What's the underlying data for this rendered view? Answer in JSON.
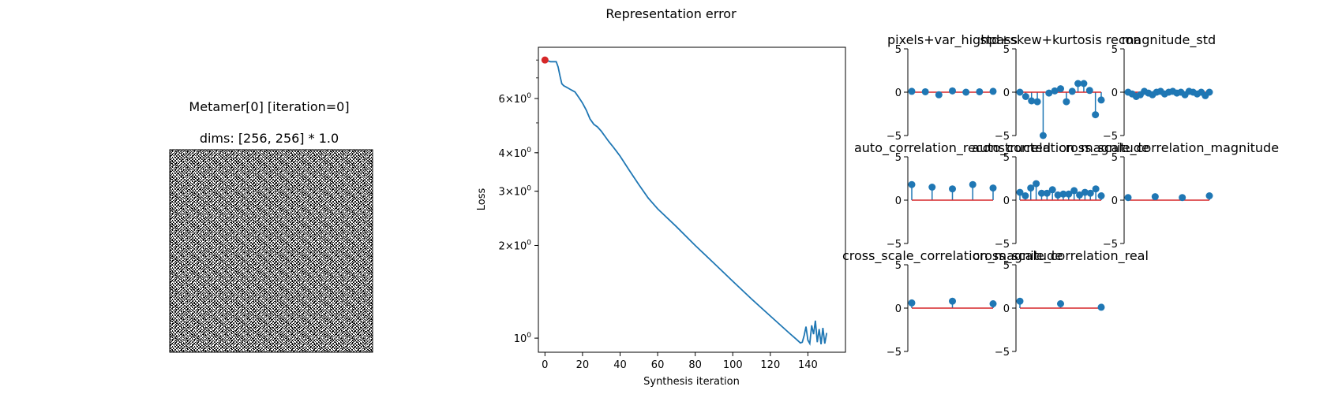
{
  "figure": {
    "image_title": "Metamer[0] [iteration=0]",
    "image_subtitle": "dims: [256, 256] * 1.0",
    "error_title": "Representation error"
  },
  "chart_data": [
    {
      "type": "line",
      "scale": "log-y",
      "xlabel": "Synthesis iteration",
      "ylabel": "Loss",
      "xlim": [
        -3.5,
        160
      ],
      "ylim": [
        0.9,
        8.8
      ],
      "x_ticks": [
        0,
        20,
        40,
        60,
        80,
        100,
        120,
        140
      ],
      "x_tick_labels": [
        "0",
        "20",
        "40",
        "60",
        "80",
        "100",
        "120",
        "140"
      ],
      "y_ticks": [
        1,
        2,
        3,
        4,
        6
      ],
      "y_tick_labels": [
        "10^0",
        "2×10^0",
        "3×10^0",
        "4×10^0",
        "6×10^0"
      ],
      "series": [
        {
          "color": "#1f77b4",
          "x": [
            0,
            3,
            6,
            7,
            8,
            9,
            10,
            11,
            12,
            14,
            16,
            18,
            20,
            22,
            24,
            26,
            28,
            30,
            32,
            34,
            36,
            38,
            40,
            45,
            50,
            55,
            60,
            70,
            80,
            90,
            100,
            110,
            120,
            130,
            134,
            136,
            137,
            138,
            139,
            140,
            141,
            142,
            143,
            144,
            145,
            146,
            147,
            148,
            149,
            150
          ],
          "y": [
            8.0,
            7.9,
            7.9,
            7.6,
            7.1,
            6.7,
            6.6,
            6.55,
            6.5,
            6.4,
            6.3,
            6.05,
            5.8,
            5.5,
            5.15,
            4.95,
            4.85,
            4.7,
            4.52,
            4.35,
            4.2,
            4.05,
            3.9,
            3.5,
            3.15,
            2.85,
            2.63,
            2.3,
            2.0,
            1.75,
            1.53,
            1.34,
            1.18,
            1.04,
            0.99,
            0.965,
            0.97,
            1.02,
            1.09,
            0.985,
            0.96,
            1.1,
            1.03,
            1.14,
            0.97,
            1.07,
            0.955,
            1.08,
            0.96,
            1.04
          ]
        }
      ],
      "marker": {
        "x": 0,
        "y": 8.0,
        "color": "#d62728"
      }
    },
    {
      "type": "stem",
      "title": "pixels+var_highpass",
      "ylim": [
        -5,
        5
      ],
      "y_ticks": [
        5,
        0,
        -5
      ],
      "values": [
        0.1,
        0.05,
        -0.3,
        0.15,
        0.0,
        0.05,
        0.1
      ]
    },
    {
      "type": "stem",
      "title": "std+skew+kurtosis recon",
      "ylim": [
        -5,
        5
      ],
      "values": [
        0.0,
        -0.5,
        -1.0,
        -1.1,
        -5.0,
        -0.1,
        0.15,
        0.4,
        -1.1,
        0.1,
        1.0,
        1.0,
        0.2,
        -2.6,
        -0.9
      ]
    },
    {
      "type": "stem",
      "title": "magnitude_std",
      "ylim": [
        -5,
        5
      ],
      "values": [
        0.0,
        -0.2,
        -0.5,
        -0.3,
        0.1,
        -0.1,
        -0.3,
        0.0,
        0.1,
        -0.2,
        0.0,
        0.1,
        -0.1,
        0.0,
        -0.3,
        0.1,
        0.0,
        -0.2,
        0.0,
        -0.4,
        0.0
      ]
    },
    {
      "type": "stem",
      "title": "auto_correlation_reconstructed",
      "ylim": [
        -5,
        5
      ],
      "values": [
        1.8,
        1.5,
        1.3,
        1.8,
        1.4
      ]
    },
    {
      "type": "stem",
      "title": "auto_correlation_magnitude",
      "ylim": [
        -5,
        5
      ],
      "values": [
        0.9,
        0.5,
        1.4,
        1.9,
        0.8,
        0.8,
        1.2,
        0.6,
        0.7,
        0.7,
        1.1,
        0.6,
        0.9,
        0.8,
        1.3,
        0.5
      ]
    },
    {
      "type": "stem",
      "title": "cross_scale_correlation_magnitude",
      "ylim": [
        -5,
        5
      ],
      "values": [
        0.3,
        0.4,
        0.3,
        0.5
      ]
    },
    {
      "type": "stem",
      "title": "cross_scale_correlation_magnitude",
      "ylim": [
        -5,
        5
      ],
      "values": [
        0.6,
        0.8,
        0.5
      ]
    },
    {
      "type": "stem",
      "title": "cross_scale_correlation_real",
      "ylim": [
        -5,
        5
      ],
      "values": [
        0.8,
        0.5,
        0.1
      ]
    }
  ]
}
